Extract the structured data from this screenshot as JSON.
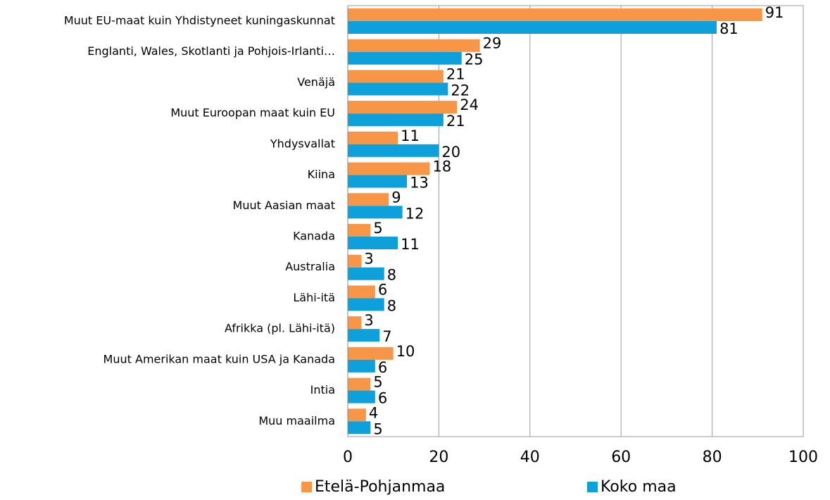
{
  "chart_data": {
    "type": "bar",
    "orientation": "horizontal",
    "categories": [
      "Muut EU-maat  kuin Yhdistyneet kuningaskunnat",
      "Englanti, Wales, Skotlanti ja Pohjois-Irlanti…",
      "Venäjä",
      "Muut Euroopan maat kuin EU",
      "Yhdysvallat",
      "Kiina",
      "Muut Aasian maat",
      "Kanada",
      "Australia",
      "Lähi-itä",
      "Afrikka (pl. Lähi-itä)",
      "Muut Amerikan maat kuin USA ja Kanada",
      "Intia",
      "Muu maailma"
    ],
    "series": [
      {
        "name": "Etelä-Pohjanmaa",
        "color": "#f79646",
        "values": [
          91,
          29,
          21,
          24,
          11,
          18,
          9,
          5,
          3,
          6,
          3,
          10,
          5,
          4
        ]
      },
      {
        "name": "Koko maa",
        "color": "#0ea0da",
        "values": [
          81,
          25,
          22,
          21,
          20,
          13,
          12,
          11,
          8,
          8,
          7,
          6,
          6,
          5
        ]
      }
    ],
    "xlim": [
      0,
      100
    ],
    "xticks": [
      0,
      20,
      40,
      60,
      80,
      100
    ],
    "grid": true,
    "legend": "bottom"
  }
}
